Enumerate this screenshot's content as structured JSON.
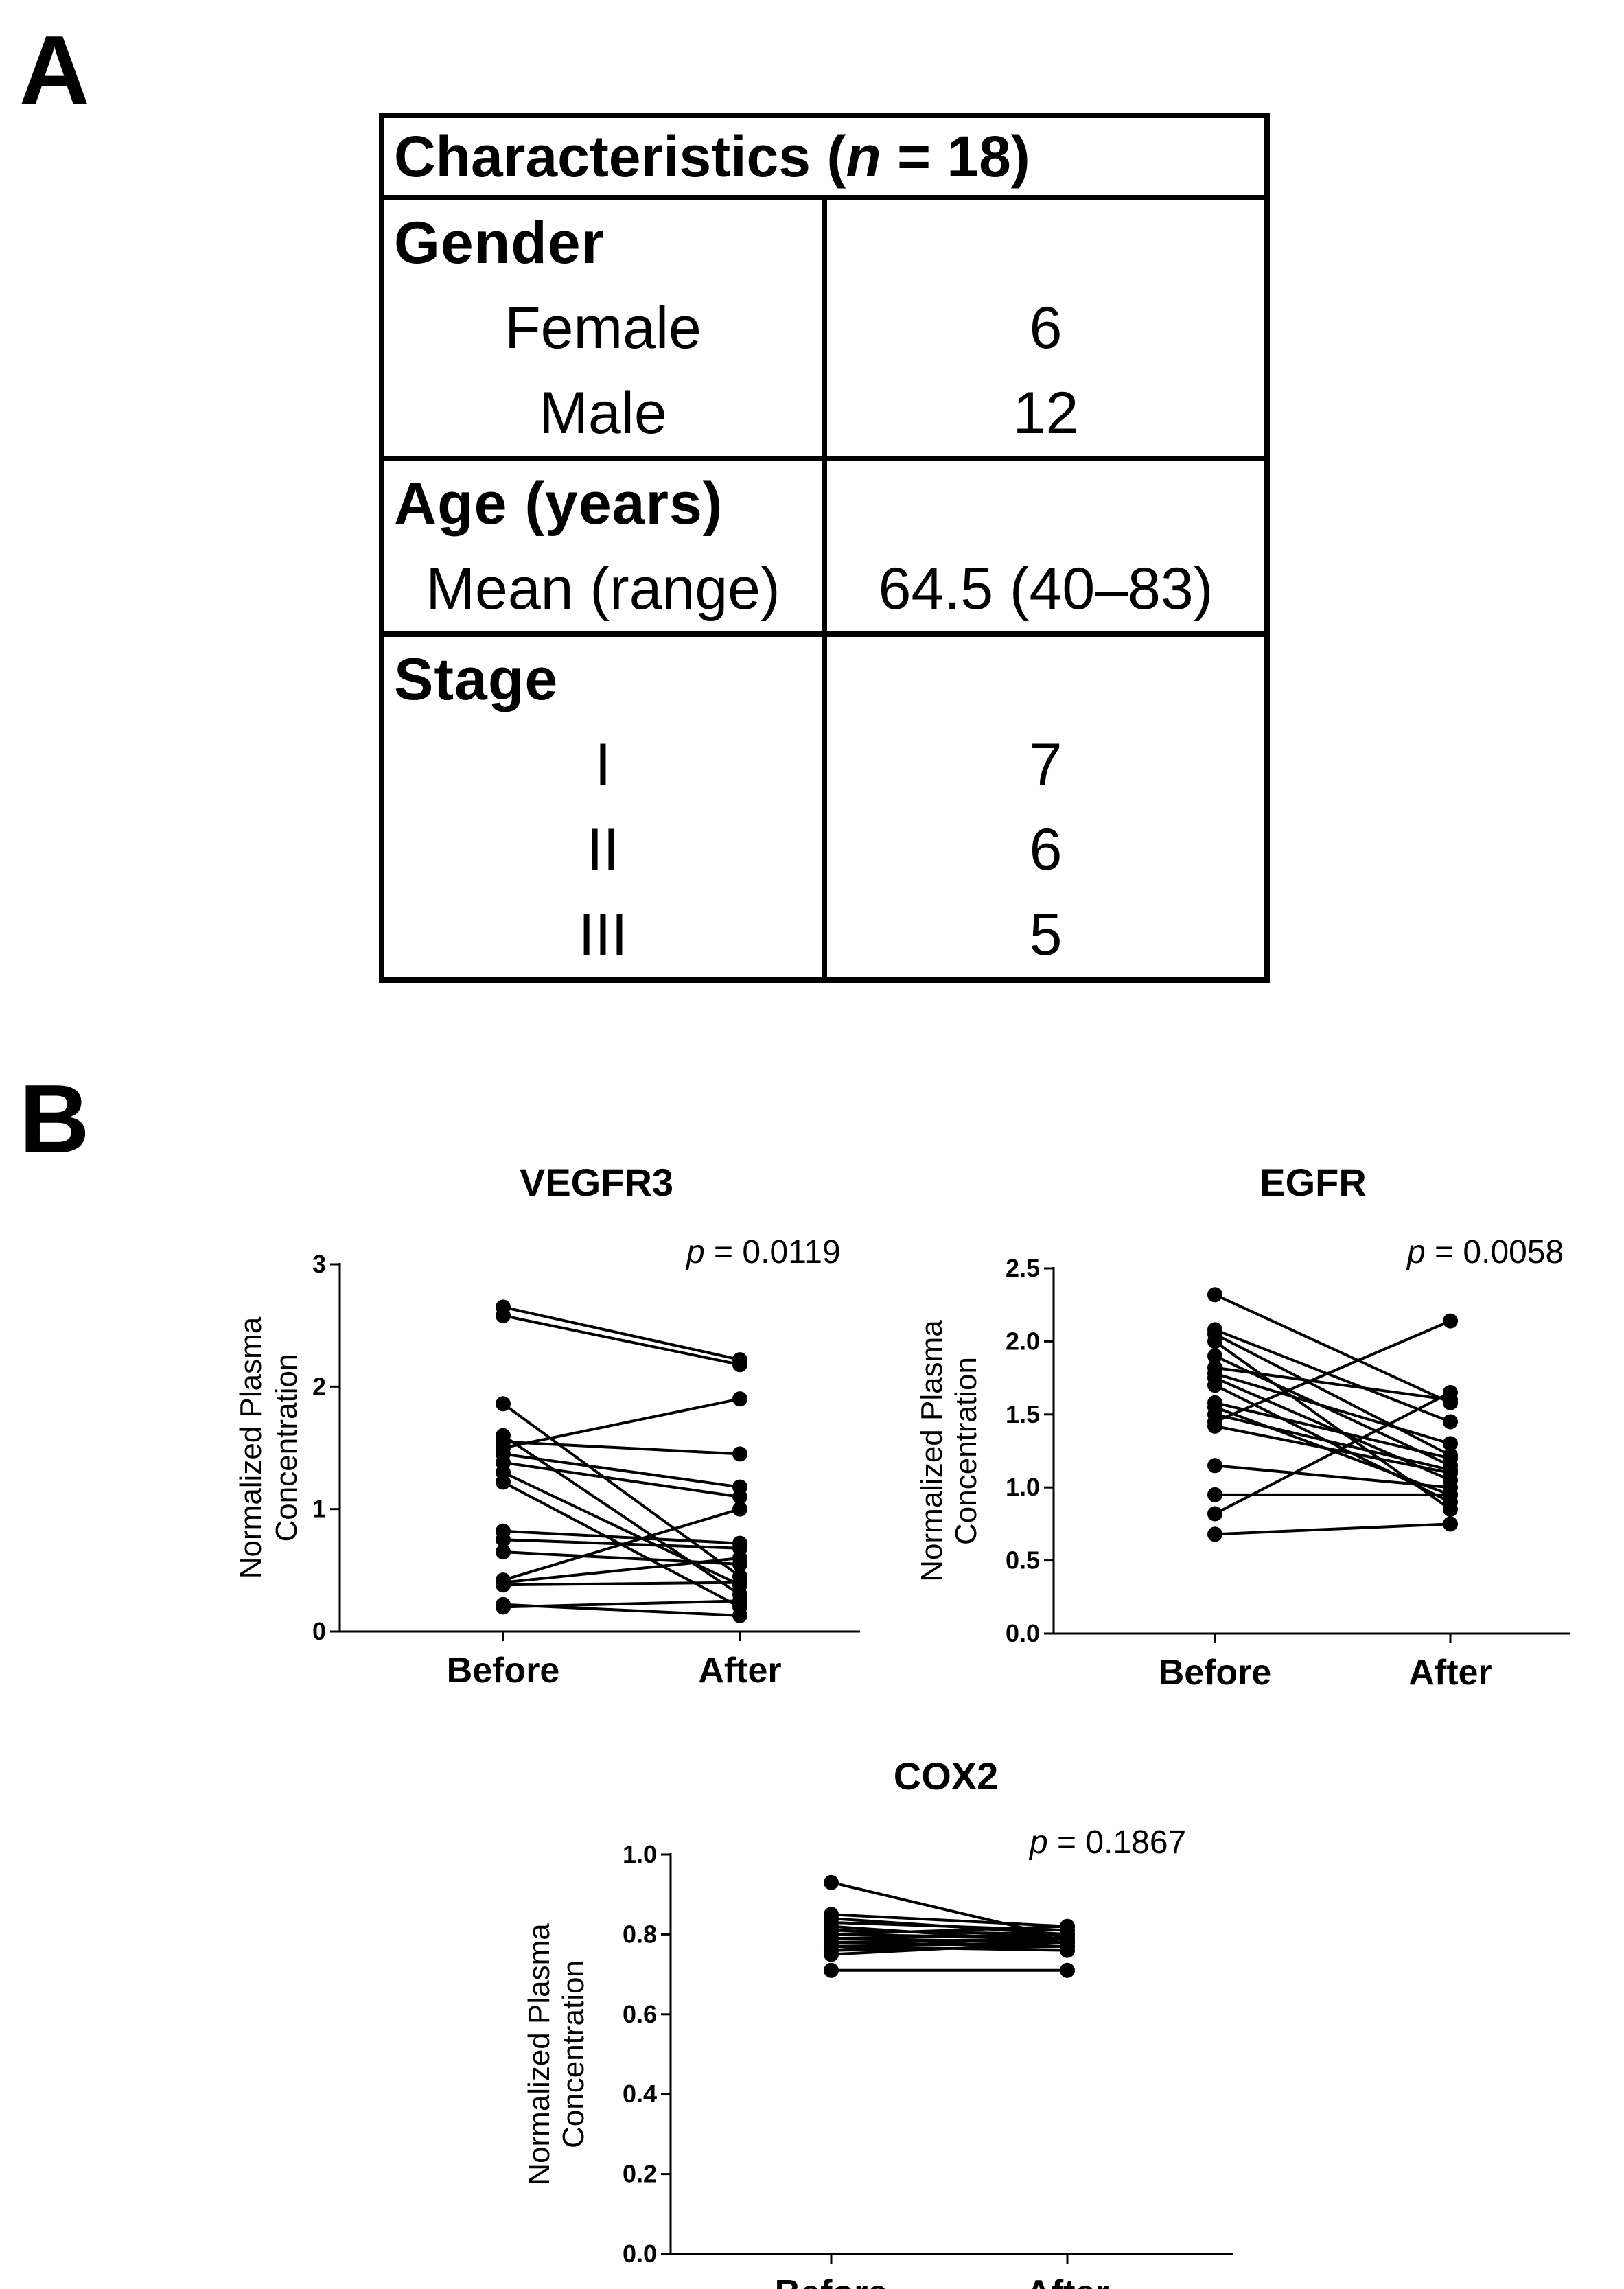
{
  "panel_a": {
    "letter": "A",
    "header": "Characteristics (",
    "header_n": "n",
    "header_rest": " = 18)",
    "sections": [
      {
        "title": "Gender",
        "rows": [
          {
            "label": "Female",
            "value": "6"
          },
          {
            "label": "Male",
            "value": "12"
          }
        ]
      },
      {
        "title": "Age (years)",
        "rows": [
          {
            "label": "Mean (range)",
            "value": "64.5 (40–83)"
          }
        ]
      },
      {
        "title": "Stage",
        "rows": [
          {
            "label": "I",
            "value": "7"
          },
          {
            "label": "II",
            "value": "6"
          },
          {
            "label": "III",
            "value": "5"
          }
        ]
      }
    ]
  },
  "panel_b": {
    "letter": "B"
  },
  "chart_data": [
    {
      "type": "line",
      "title": "VEGFR3",
      "ylabel_line1": "Normalized Plasma",
      "ylabel_line2": "Concentration",
      "categories": [
        "Before",
        "After"
      ],
      "ylim": [
        0,
        3
      ],
      "yticks": [
        "0",
        "1",
        "2",
        "3"
      ],
      "p_label": "p",
      "p_value": " = 0.0119",
      "pairs": [
        [
          2.65,
          2.22
        ],
        [
          2.58,
          2.18
        ],
        [
          1.86,
          0.45
        ],
        [
          1.6,
          0.3
        ],
        [
          1.55,
          1.45
        ],
        [
          1.5,
          1.9
        ],
        [
          1.45,
          1.18
        ],
        [
          1.38,
          1.1
        ],
        [
          1.3,
          0.38
        ],
        [
          1.22,
          0.2
        ],
        [
          0.82,
          0.72
        ],
        [
          0.75,
          0.68
        ],
        [
          0.65,
          0.55
        ],
        [
          0.42,
          1.0
        ],
        [
          0.4,
          0.6
        ],
        [
          0.38,
          0.4
        ],
        [
          0.22,
          0.13
        ],
        [
          0.2,
          0.25
        ]
      ]
    },
    {
      "type": "line",
      "title": "EGFR",
      "ylabel_line1": "Normalized Plasma",
      "ylabel_line2": "Concentration",
      "categories": [
        "Before",
        "After"
      ],
      "ylim": [
        0,
        2.5
      ],
      "yticks": [
        "0.0",
        "0.5",
        "1.0",
        "1.5",
        "2.0",
        "2.5"
      ],
      "p_label": "p",
      "p_value": " = 0.0058",
      "pairs": [
        [
          2.32,
          1.58
        ],
        [
          2.08,
          1.45
        ],
        [
          2.05,
          1.22
        ],
        [
          2.0,
          0.85
        ],
        [
          1.9,
          1.15
        ],
        [
          1.82,
          1.6
        ],
        [
          1.78,
          1.3
        ],
        [
          1.75,
          1.05
        ],
        [
          1.7,
          0.9
        ],
        [
          1.58,
          1.2
        ],
        [
          1.55,
          0.95
        ],
        [
          1.5,
          1.12
        ],
        [
          1.45,
          2.14
        ],
        [
          1.42,
          1.1
        ],
        [
          1.15,
          1.0
        ],
        [
          0.95,
          0.95
        ],
        [
          0.82,
          1.65
        ],
        [
          0.68,
          0.75
        ]
      ]
    },
    {
      "type": "line",
      "title": "COX2",
      "ylabel_line1": "Normalized Plasma",
      "ylabel_line2": "Concentration",
      "categories": [
        "Before",
        "After"
      ],
      "ylim": [
        0,
        1.0
      ],
      "yticks": [
        "0.0",
        "0.2",
        "0.4",
        "0.6",
        "0.8",
        "1.0"
      ],
      "p_label": "p",
      "p_value": " = 0.1867",
      "pairs": [
        [
          0.93,
          0.79
        ],
        [
          0.85,
          0.82
        ],
        [
          0.84,
          0.8
        ],
        [
          0.83,
          0.81
        ],
        [
          0.82,
          0.78
        ],
        [
          0.81,
          0.8
        ],
        [
          0.8,
          0.79
        ],
        [
          0.8,
          0.82
        ],
        [
          0.79,
          0.78
        ],
        [
          0.79,
          0.8
        ],
        [
          0.78,
          0.77
        ],
        [
          0.78,
          0.79
        ],
        [
          0.77,
          0.76
        ],
        [
          0.77,
          0.78
        ],
        [
          0.76,
          0.77
        ],
        [
          0.76,
          0.8
        ],
        [
          0.75,
          0.78
        ],
        [
          0.71,
          0.71
        ]
      ]
    }
  ]
}
